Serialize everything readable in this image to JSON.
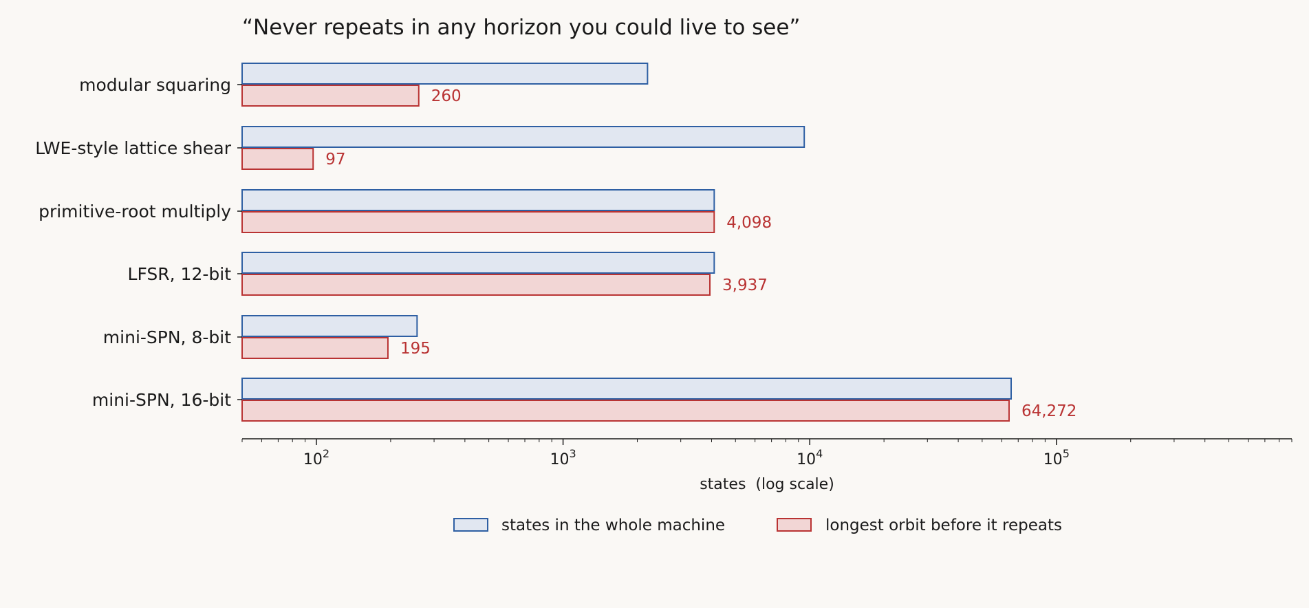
{
  "chart_data": {
    "type": "bar",
    "orientation": "horizontal",
    "title": "“Never repeats in any horizon you could live to see”",
    "xlabel": "states  (log scale)",
    "ylabel": "",
    "x_scale": "log",
    "xlim": [
      50,
      900000
    ],
    "x_tick_labels": [
      {
        "value": 100,
        "base": "10",
        "exp": "2"
      },
      {
        "value": 1000,
        "base": "10",
        "exp": "3"
      },
      {
        "value": 10000,
        "base": "10",
        "exp": "4"
      },
      {
        "value": 100000,
        "base": "10",
        "exp": "5"
      }
    ],
    "grid": false,
    "legend_position": "bottom-center",
    "categories": [
      "modular squaring",
      "LWE-style lattice shear",
      "primitive-root multiply",
      "LFSR, 12-bit",
      "mini-SPN, 8-bit",
      "mini-SPN, 16-bit"
    ],
    "series": [
      {
        "name": "states in the whole machine",
        "values": [
          2200,
          9500,
          4100,
          4100,
          256,
          65536
        ],
        "fill": "#e1e7f1",
        "stroke": "#2e5fa3",
        "show_labels": false
      },
      {
        "name": "longest orbit before it repeats",
        "values": [
          260,
          97,
          4098,
          3937,
          195,
          64272
        ],
        "labels": [
          "260",
          "97",
          "4,098",
          "3,937",
          "195",
          "64,272"
        ],
        "fill": "#f2d6d5",
        "stroke": "#b93333",
        "label_color": "#b93333",
        "show_labels": true
      }
    ]
  }
}
